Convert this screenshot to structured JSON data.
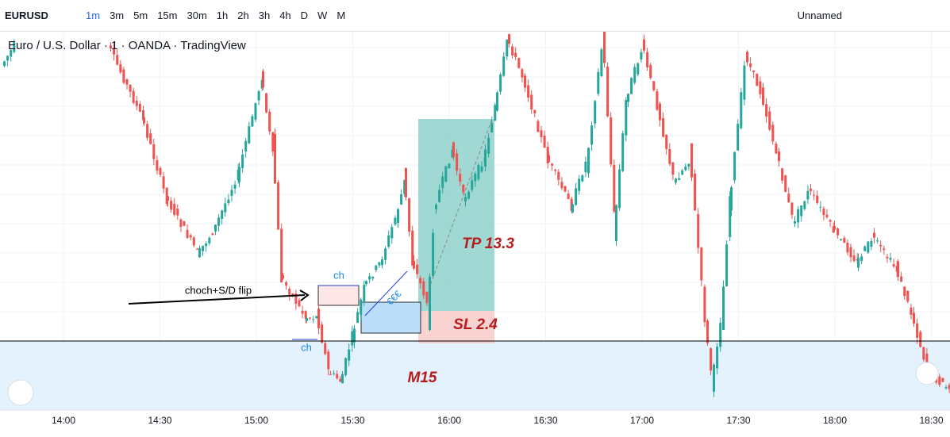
{
  "toolbar": {
    "symbol": "EURUSD",
    "intervals": [
      "1m",
      "3m",
      "5m",
      "15m",
      "30m",
      "1h",
      "2h",
      "3h",
      "4h",
      "D",
      "W",
      "M"
    ],
    "layout_name": "Unnamed"
  },
  "legend": {
    "title": "Euro / U.S. Dollar · 1 · OANDA · TradingView"
  },
  "annotations": {
    "arrow_text": "choch+S/D flip",
    "ch_upper": "ch",
    "ch_lower": "ch",
    "euro": "€€€",
    "tp": "TP 13.3",
    "sl": "SL 2.4",
    "zone": "M15"
  },
  "time_axis": [
    "14:00",
    "14:30",
    "15:00",
    "15:30",
    "16:00",
    "16:30",
    "17:00",
    "17:30",
    "18:00",
    "18:30"
  ]
}
